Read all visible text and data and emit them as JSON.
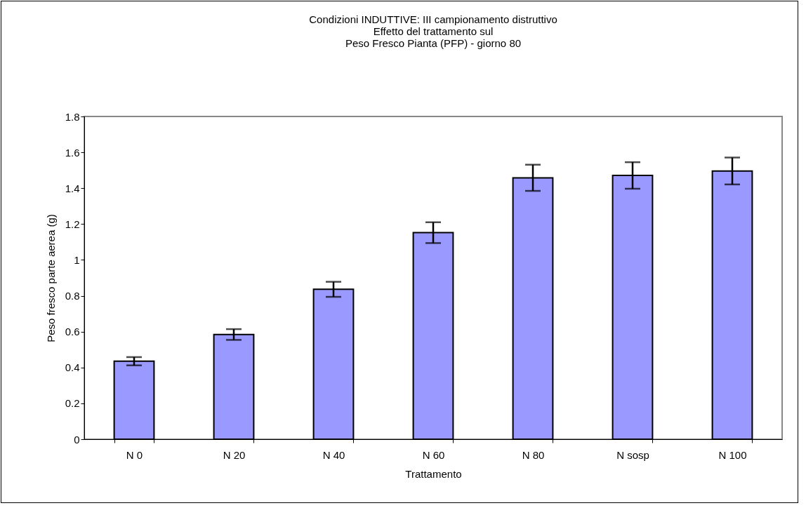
{
  "chart_data": {
    "type": "bar",
    "title": "Condizioni INDUTTIVE: III campionamento distruttivo\nEffetto del trattamento sul\nPeso Fresco Pianta (PFP) - giorno 80",
    "xlabel": "Trattamento",
    "ylabel": "Peso fresco parte aerea (g)",
    "categories": [
      "N 0",
      "N 20",
      "N 40",
      "N 60",
      "N 80",
      "N sosp",
      "N 100"
    ],
    "values": [
      0.435,
      0.584,
      0.836,
      1.152,
      1.458,
      1.471,
      1.496
    ],
    "errors": [
      0.023,
      0.03,
      0.042,
      0.058,
      0.073,
      0.074,
      0.075
    ],
    "color": "#9999ff",
    "ylim": [
      0,
      1.8
    ],
    "yticks": [
      0,
      0.2,
      0.4,
      0.6,
      0.8,
      1,
      1.2,
      1.4,
      1.6,
      1.8
    ],
    "grid": false
  }
}
